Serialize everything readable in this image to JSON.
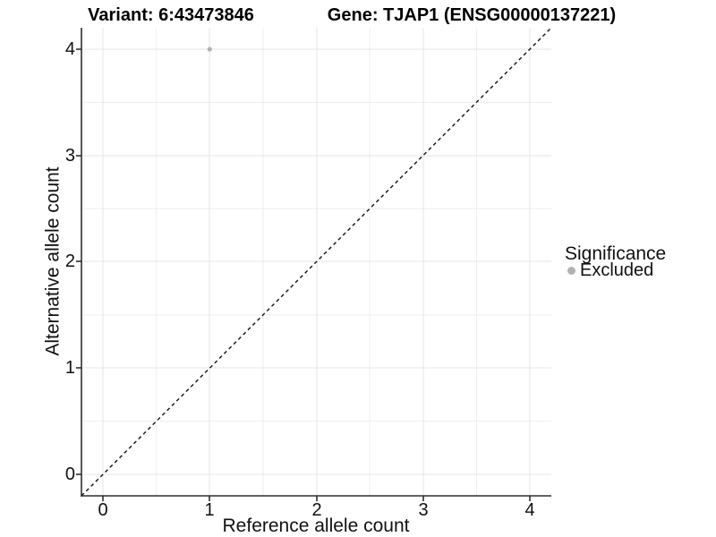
{
  "titles": {
    "variant": "Variant: 6:43473846",
    "gene": "Gene: TJAP1 (ENSG00000137221)"
  },
  "chart_data": {
    "type": "scatter",
    "title": "Variant: 6:43473846  /  Gene: TJAP1 (ENSG00000137221)",
    "xlabel": "Reference allele count",
    "ylabel": "Alternative allele count",
    "xlim": [
      -0.2,
      4.2
    ],
    "ylim": [
      -0.2,
      4.2
    ],
    "x_ticks": [
      0,
      1,
      2,
      3,
      4
    ],
    "y_ticks": [
      4,
      3,
      2,
      1,
      0
    ],
    "grid": "major and minor, light grey on white",
    "points": [
      {
        "x": 1,
        "y": 4,
        "series": "Excluded"
      }
    ],
    "reference_line": {
      "type": "identity y=x",
      "style": "dashed",
      "from": [
        -0.2,
        -0.2
      ],
      "to": [
        4.2,
        4.2
      ],
      "color": "#000000"
    },
    "legend": {
      "title": "Significance",
      "position": "right",
      "entries": [
        {
          "label": "Excluded",
          "color": "#b2b2b2",
          "marker": "circle"
        }
      ]
    },
    "colors": {
      "point_excluded": "#b2b2b2",
      "grid_major": "#e4e4e4",
      "grid_minor": "#eeeeee",
      "axis_line": "#2e2e2e",
      "text": "#111111"
    }
  }
}
